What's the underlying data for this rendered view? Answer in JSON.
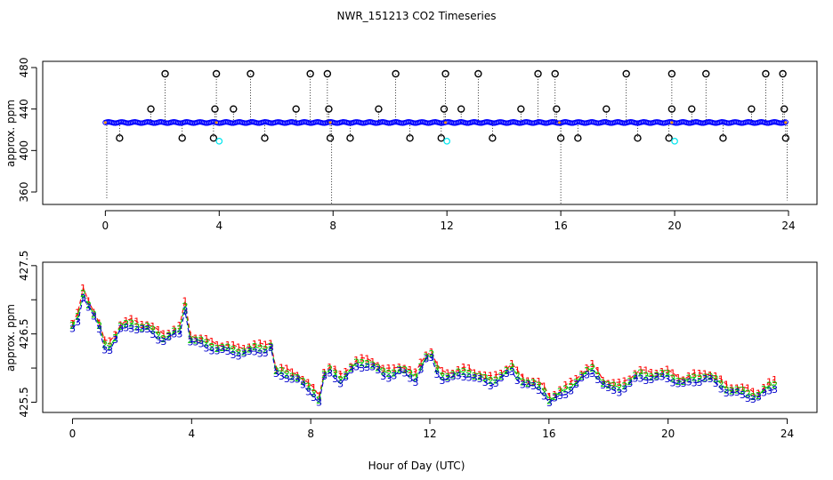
{
  "title": "NWR_151213  CO2 Timeseries",
  "xlabel": "Hour of Day (UTC)",
  "colors": {
    "circle": "#000000",
    "blue": "#0000ff",
    "cyan": "#00e5ee",
    "red": "#ff0000",
    "green": "#00cc00",
    "navy": "#0000cc"
  },
  "chart_data": [
    {
      "type": "scatter",
      "title": "NWR_151213  CO2 Timeseries",
      "xlabel": "",
      "ylabel": "approx. ppm",
      "xlim": [
        -2.2,
        25.0
      ],
      "ylim": [
        348,
        486
      ],
      "xticks": [
        0,
        4,
        8,
        12,
        16,
        20,
        24
      ],
      "yticks": [
        360,
        400,
        440,
        480
      ],
      "baseline": 427,
      "series": [
        {
          "values_x": [
            2.1,
            3.9,
            5.1,
            7.2,
            7.8,
            10.2,
            11.95,
            13.1,
            15.2,
            15.8,
            18.3,
            19.9,
            21.1,
            23.2,
            23.8
          ],
          "values_y": [
            474,
            474,
            474,
            474,
            474,
            474,
            474,
            474,
            474,
            474,
            474,
            474,
            474,
            474,
            474
          ]
        },
        {
          "values_x": [
            1.6,
            3.85,
            4.5,
            6.7,
            7.85,
            9.6,
            11.9,
            12.5,
            14.6,
            15.85,
            17.6,
            19.9,
            20.6,
            22.7,
            23.85
          ],
          "values_y": [
            440,
            440,
            440,
            440,
            440,
            440,
            440,
            440,
            440,
            440,
            440,
            440,
            440,
            440,
            440
          ]
        },
        {
          "values_x": [
            0.5,
            2.7,
            3.8,
            5.6,
            7.9,
            8.6,
            10.7,
            11.8,
            13.6,
            16.0,
            16.6,
            18.7,
            19.8,
            21.7,
            23.9
          ],
          "values_y": [
            412,
            412,
            412,
            412,
            412,
            412,
            412,
            412,
            412,
            412,
            412,
            412,
            412,
            412,
            412
          ]
        }
      ],
      "cyan_points": {
        "x": [
          4.0,
          12.0,
          20.0
        ],
        "y": [
          409,
          409,
          409
        ]
      },
      "dips": [
        {
          "x": 0.05,
          "y": 353
        },
        {
          "x": 7.95,
          "y": 349
        },
        {
          "x": 16.0,
          "y": 349
        },
        {
          "x": 23.95,
          "y": 352
        }
      ]
    },
    {
      "type": "line",
      "title": "",
      "xlabel": "Hour of Day (UTC)",
      "ylabel": "approx. ppm",
      "xlim": [
        -1.0,
        25.0
      ],
      "ylim": [
        425.35,
        427.55
      ],
      "xticks": [
        0,
        4,
        8,
        12,
        16,
        20,
        24
      ],
      "yticks": [
        425.5,
        426.0,
        426.5,
        427.0,
        427.5
      ],
      "ytick_labels": [
        "425.5",
        "",
        "426.5",
        "",
        "427.5"
      ],
      "series": [
        {
          "name": "1",
          "color": "#ff0000",
          "values": []
        },
        {
          "name": "2",
          "color": "#00cc00",
          "values": []
        },
        {
          "name": "3",
          "color": "#0000cc",
          "values": []
        }
      ],
      "profile": [
        [
          0.0,
          426.55
        ],
        [
          0.2,
          426.7
        ],
        [
          0.4,
          427.15
        ],
        [
          0.6,
          426.8
        ],
        [
          0.8,
          426.7
        ],
        [
          1.1,
          426.25
        ],
        [
          1.3,
          426.3
        ],
        [
          1.6,
          426.55
        ],
        [
          2.0,
          426.6
        ],
        [
          2.5,
          426.55
        ],
        [
          3.0,
          426.4
        ],
        [
          3.3,
          426.45
        ],
        [
          3.6,
          426.5
        ],
        [
          3.75,
          426.95
        ],
        [
          3.95,
          426.4
        ],
        [
          4.5,
          426.3
        ],
        [
          5.5,
          426.2
        ],
        [
          6.5,
          426.25
        ],
        [
          6.6,
          426.55
        ],
        [
          6.75,
          425.9
        ],
        [
          7.5,
          425.85
        ],
        [
          7.8,
          425.7
        ],
        [
          8.1,
          425.6
        ],
        [
          8.3,
          425.5
        ],
        [
          8.5,
          425.95
        ],
        [
          9.0,
          425.8
        ],
        [
          9.5,
          426.0
        ],
        [
          10.0,
          426.05
        ],
        [
          10.5,
          425.85
        ],
        [
          11.0,
          425.95
        ],
        [
          11.5,
          425.8
        ],
        [
          11.7,
          426.0
        ],
        [
          12.0,
          426.2
        ],
        [
          12.3,
          425.85
        ],
        [
          12.8,
          425.85
        ],
        [
          13.3,
          425.9
        ],
        [
          14.0,
          425.75
        ],
        [
          14.8,
          425.95
        ],
        [
          15.0,
          425.8
        ],
        [
          15.8,
          425.65
        ],
        [
          16.0,
          425.5
        ],
        [
          16.5,
          425.6
        ],
        [
          17.0,
          425.8
        ],
        [
          17.5,
          425.95
        ],
        [
          17.9,
          425.7
        ],
        [
          18.3,
          425.65
        ],
        [
          19.0,
          425.85
        ],
        [
          19.8,
          425.85
        ],
        [
          20.0,
          425.85
        ],
        [
          20.5,
          425.75
        ],
        [
          21.3,
          425.85
        ],
        [
          22.0,
          425.65
        ],
        [
          22.5,
          425.6
        ],
        [
          23.0,
          425.55
        ],
        [
          23.5,
          425.7
        ],
        [
          23.75,
          425.75
        ]
      ],
      "offsets": {
        "1": 0.1,
        "2": 0.05,
        "3": 0.0
      }
    }
  ]
}
